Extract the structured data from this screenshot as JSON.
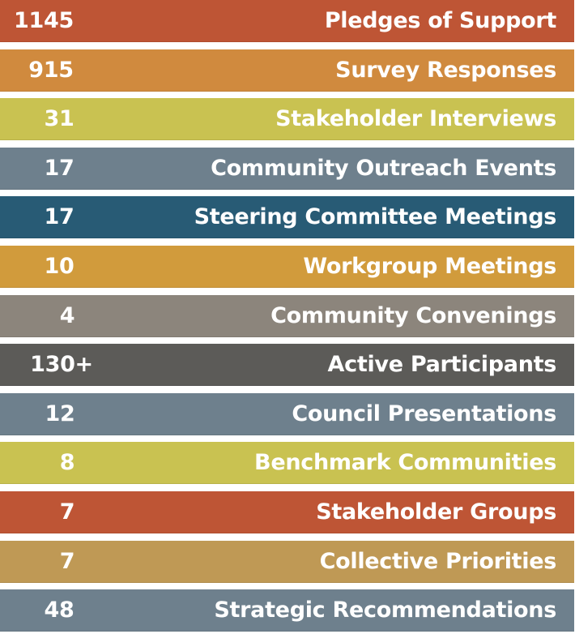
{
  "stats": [
    {
      "value": "1145",
      "label": "Pledges of Support",
      "color": "#BE5535"
    },
    {
      "value": "915",
      "label": "Survey Responses",
      "color": "#D08A3E"
    },
    {
      "value": "31",
      "label": "Stakeholder Interviews",
      "color": "#C9C251"
    },
    {
      "value": "17",
      "label": "Community Outreach Events",
      "color": "#6E808D"
    },
    {
      "value": "17",
      "label": "Steering Committee Meetings",
      "color": "#285B75"
    },
    {
      "value": "10",
      "label": "Workgroup Meetings",
      "color": "#D19B3C"
    },
    {
      "value": "4",
      "label": "Community Convenings",
      "color": "#8C857C"
    },
    {
      "value": "130+",
      "label": "Active Participants",
      "color": "#5C5B58"
    },
    {
      "value": "12",
      "label": "Council Presentations",
      "color": "#6E808D"
    },
    {
      "value": "8",
      "label": "Benchmark Communities",
      "color": "#C9C251"
    },
    {
      "value": "7",
      "label": "Stakeholder Groups",
      "color": "#BE5535"
    },
    {
      "value": "7",
      "label": "Collective Priorities",
      "color": "#BF9955"
    },
    {
      "value": "48",
      "label": "Strategic Recommendations",
      "color": "#6E808D"
    }
  ]
}
